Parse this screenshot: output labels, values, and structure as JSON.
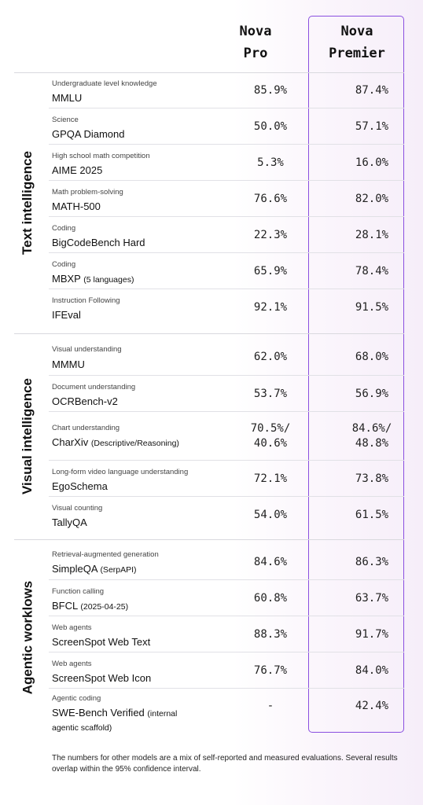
{
  "header": {
    "col_pro": [
      "Nova",
      "Pro"
    ],
    "col_premier": [
      "Nova",
      "Premier"
    ]
  },
  "sections": [
    {
      "title": "Text intelligence",
      "rows": [
        {
          "category": "Undergraduate level knowledge",
          "name": "MMLU",
          "note": "",
          "pro": "85.9%",
          "premier": "87.4%"
        },
        {
          "category": "Science",
          "name": "GPQA Diamond",
          "note": "",
          "pro": "50.0%",
          "premier": "57.1%"
        },
        {
          "category": "High school math competition",
          "name": "AIME 2025",
          "note": "",
          "pro": "5.3%",
          "premier": "16.0%"
        },
        {
          "category": "Math problem-solving",
          "name": "MATH-500",
          "note": "",
          "pro": "76.6%",
          "premier": "82.0%"
        },
        {
          "category": "Coding",
          "name": "BigCodeBench Hard",
          "note": "",
          "pro": "22.3%",
          "premier": "28.1%"
        },
        {
          "category": "Coding",
          "name": "MBXP",
          "note": "(5 languages)",
          "pro": "65.9%",
          "premier": "78.4%"
        },
        {
          "category": "Instruction Following",
          "name": "IFEval",
          "note": "",
          "pro": "92.1%",
          "premier": "91.5%"
        }
      ]
    },
    {
      "title": "Visual intelligence",
      "rows": [
        {
          "category": "Visual understanding",
          "name": "MMMU",
          "note": "",
          "pro": "62.0%",
          "premier": "68.0%"
        },
        {
          "category": "Document understanding",
          "name": "OCRBench-v2",
          "note": "",
          "pro": "53.7%",
          "premier": "56.9%"
        },
        {
          "category": "Chart understanding",
          "name": "CharXiv",
          "note": "(Descriptive/Reasoning)",
          "pro": "70.5%/",
          "pro2": "40.6%",
          "premier": "84.6%/",
          "premier2": "48.8%"
        },
        {
          "category": "Long-form video language understanding",
          "name": "EgoSchema",
          "note": "",
          "pro": "72.1%",
          "premier": "73.8%"
        },
        {
          "category": "Visual counting",
          "name": "TallyQA",
          "note": "",
          "pro": "54.0%",
          "premier": "61.5%"
        }
      ]
    },
    {
      "title": "Agentic worklows",
      "rows": [
        {
          "category": "Retrieval-augmented generation",
          "name": "SimpleQA",
          "note": "(SerpAPI)",
          "pro": "84.6%",
          "premier": "86.3%"
        },
        {
          "category": "Function calling",
          "name": "BFCL",
          "note": "(2025-04-25)",
          "pro": "60.8%",
          "premier": "63.7%"
        },
        {
          "category": "Web agents",
          "name": "ScreenSpot Web Text",
          "note": "",
          "pro": "88.3%",
          "premier": "91.7%"
        },
        {
          "category": "Web agents",
          "name": "ScreenSpot Web Icon",
          "note": "",
          "pro": "76.7%",
          "premier": "84.0%"
        },
        {
          "category": "Agentic coding",
          "name": "SWE-Bench Verified",
          "note": "(internal",
          "note2": "agentic scaffold)",
          "pro": "-",
          "premier": "42.4%"
        }
      ]
    }
  ],
  "footnote": "The numbers for other models are a mix of self-reported and measured evaluations. Several results overlap within the 95% confidence interval.",
  "colors": {
    "premier_border": "#8a4fe0",
    "background_tint": "#f6eef9"
  }
}
